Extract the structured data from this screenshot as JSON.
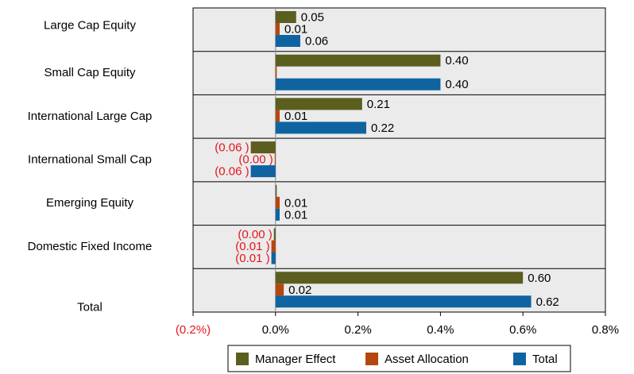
{
  "chart_data": {
    "type": "hbar",
    "categories": [
      "Large Cap Equity",
      "Small Cap Equity",
      "International Large Cap",
      "International Small Cap",
      "Emerging Equity",
      "Domestic Fixed Income",
      "Total"
    ],
    "series": [
      {
        "name": "Manager Effect",
        "color": "#5b5e1e",
        "values": [
          0.05,
          0.4,
          0.21,
          -0.06,
          0.003,
          -0.004,
          0.6
        ],
        "value_labels": [
          "0.05",
          "0.40",
          "0.21",
          "(0.06 )",
          null,
          "(0.00 )",
          "0.60"
        ]
      },
      {
        "name": "Asset Allocation",
        "color": "#b4470f",
        "values": [
          0.01,
          0.003,
          0.01,
          -0.002,
          0.01,
          -0.01,
          0.02
        ],
        "value_labels": [
          "0.01",
          null,
          "0.01",
          "(0.00 )",
          "0.01",
          "(0.01 )",
          "0.02"
        ]
      },
      {
        "name": "Total",
        "color": "#0f63a0",
        "values": [
          0.06,
          0.4,
          0.22,
          -0.06,
          0.01,
          -0.01,
          0.62
        ],
        "value_labels": [
          "0.06",
          "0.40",
          "0.22",
          "(0.06 )",
          "0.01",
          "(0.01 )",
          "0.62"
        ]
      }
    ],
    "xlim": [
      -0.2,
      0.8
    ],
    "xticks": [
      {
        "value": -0.2,
        "label": "(0.2%)"
      },
      {
        "value": 0,
        "label": "0.0%"
      },
      {
        "value": 0.2,
        "label": "0.2%"
      },
      {
        "value": 0.4,
        "label": "0.4%"
      },
      {
        "value": 0.6,
        "label": "0.6%"
      },
      {
        "value": 0.8,
        "label": "0.8%"
      }
    ],
    "negative_color": "#e8141c",
    "grid": true,
    "legend": "bottom"
  }
}
